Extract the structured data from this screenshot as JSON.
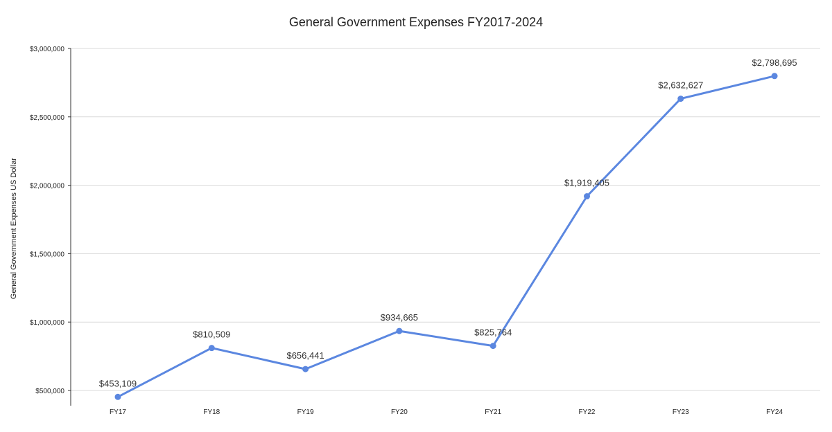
{
  "chart_data": {
    "type": "line",
    "title": "General Government Expenses FY2017-2024",
    "xlabel": "",
    "ylabel": "General Government Expenses US Dollar",
    "categories": [
      "FY17",
      "FY18",
      "FY19",
      "FY20",
      "FY21",
      "FY22",
      "FY23",
      "FY24"
    ],
    "series": [
      {
        "values": [
          453109,
          810509,
          656441,
          934665,
          825764,
          1919405,
          2632627,
          2798695
        ],
        "data_labels": [
          "$453,109",
          "$810,509",
          "$656,441",
          "$934,665",
          "$825,764",
          "$1,919,405",
          "$2,632,627",
          "$2,798,695"
        ],
        "color": "#5b87e0"
      }
    ],
    "ylim": [
      500000,
      3000000
    ],
    "yticks": [
      500000,
      1000000,
      1500000,
      2000000,
      2500000,
      3000000
    ],
    "ytick_labels": [
      "$500,000",
      "$1,000,000",
      "$1,500,000",
      "$2,000,000",
      "$2,500,000",
      "$3,000,000"
    ],
    "grid": true,
    "legend": "none",
    "colors": {
      "line": "#5b87e0",
      "gridline": "#d9d9d9",
      "axis": "#333333",
      "text": "#222222"
    }
  }
}
